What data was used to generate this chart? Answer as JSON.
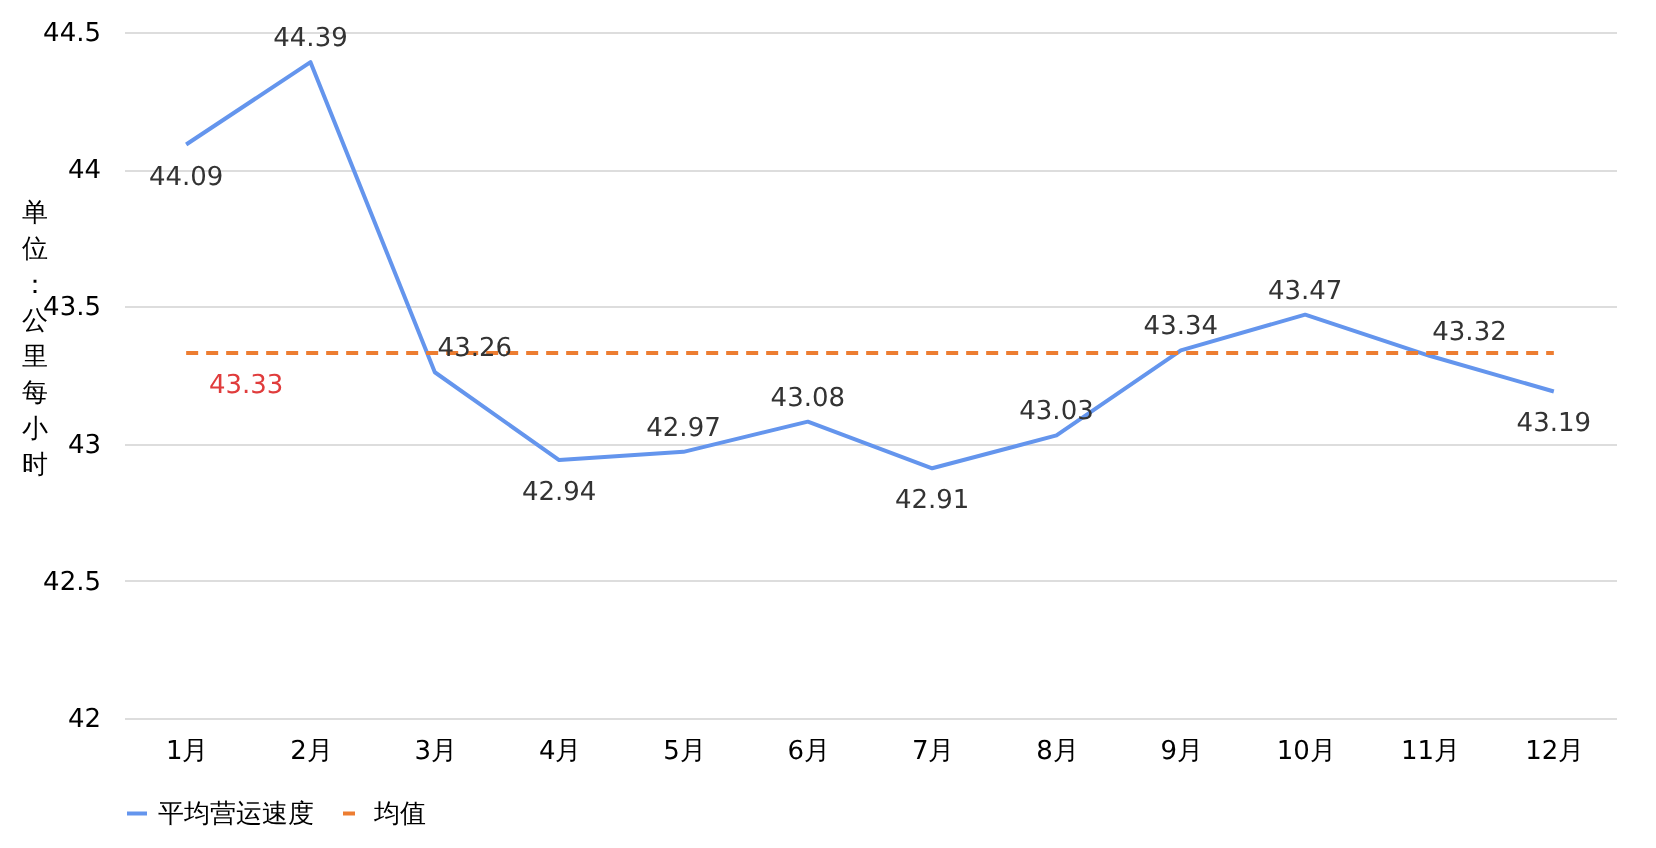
{
  "chart_data": {
    "type": "line",
    "ylabel": "单位：公里每小时",
    "categories": [
      "1月",
      "2月",
      "3月",
      "4月",
      "5月",
      "6月",
      "7月",
      "8月",
      "9月",
      "10月",
      "11月",
      "12月"
    ],
    "series": [
      {
        "name": "平均营运速度",
        "color": "#6495ed",
        "line_style": "solid",
        "values": [
          44.09,
          44.39,
          43.26,
          42.94,
          42.97,
          43.08,
          42.91,
          43.03,
          43.34,
          43.47,
          43.32,
          43.19
        ],
        "value_labels": [
          "44.09",
          "44.39",
          "43.26",
          "42.94",
          "42.97",
          "43.08",
          "42.91",
          "43.03",
          "43.34",
          "43.47",
          "43.32",
          "43.19"
        ]
      },
      {
        "name": "均值",
        "color": "#ed7d31",
        "line_style": "dashed",
        "values": [
          43.33,
          43.33,
          43.33,
          43.33,
          43.33,
          43.33,
          43.33,
          43.33,
          43.33,
          43.33,
          43.33,
          43.33
        ],
        "value_labels": [
          "43.33",
          null,
          null,
          null,
          null,
          null,
          null,
          null,
          null,
          null,
          null,
          null
        ]
      }
    ],
    "ylim": [
      42,
      44.5
    ],
    "yticks": [
      42,
      42.5,
      43,
      43.5,
      44,
      44.5
    ],
    "grid": "y",
    "legend": "bottom",
    "marker": "none"
  }
}
